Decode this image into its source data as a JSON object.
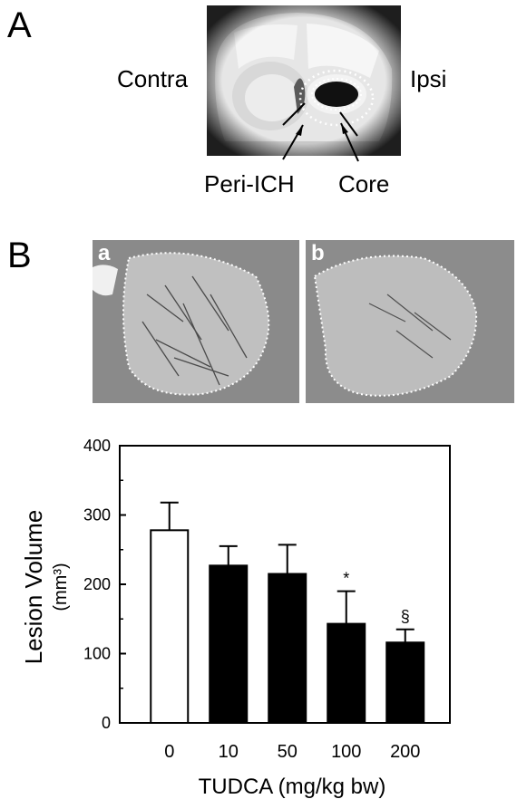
{
  "panel_a": {
    "letter": "A",
    "left_label": "Contra",
    "right_label": "Ipsi",
    "callouts": [
      "Peri-ICH",
      "Core"
    ]
  },
  "panel_b": {
    "letter": "B",
    "sub_a": "a",
    "sub_b": "b"
  },
  "chart_data": {
    "type": "bar",
    "categories": [
      "0",
      "10",
      "50",
      "100",
      "200"
    ],
    "values": [
      278,
      227,
      215,
      143,
      116
    ],
    "errors": [
      40,
      28,
      42,
      47,
      19
    ],
    "bar_colors": [
      "#ffffff",
      "#000000",
      "#000000",
      "#000000",
      "#000000"
    ],
    "significance": [
      "",
      "",
      "",
      "*",
      "§"
    ],
    "xlabel": "TUDCA (mg/kg bw)",
    "ylabel": "Lesion Volume",
    "ylabel_unit": "(mm³)",
    "ylim": [
      0,
      400
    ],
    "yticks": [
      0,
      100,
      200,
      300,
      400
    ],
    "grid": false
  }
}
